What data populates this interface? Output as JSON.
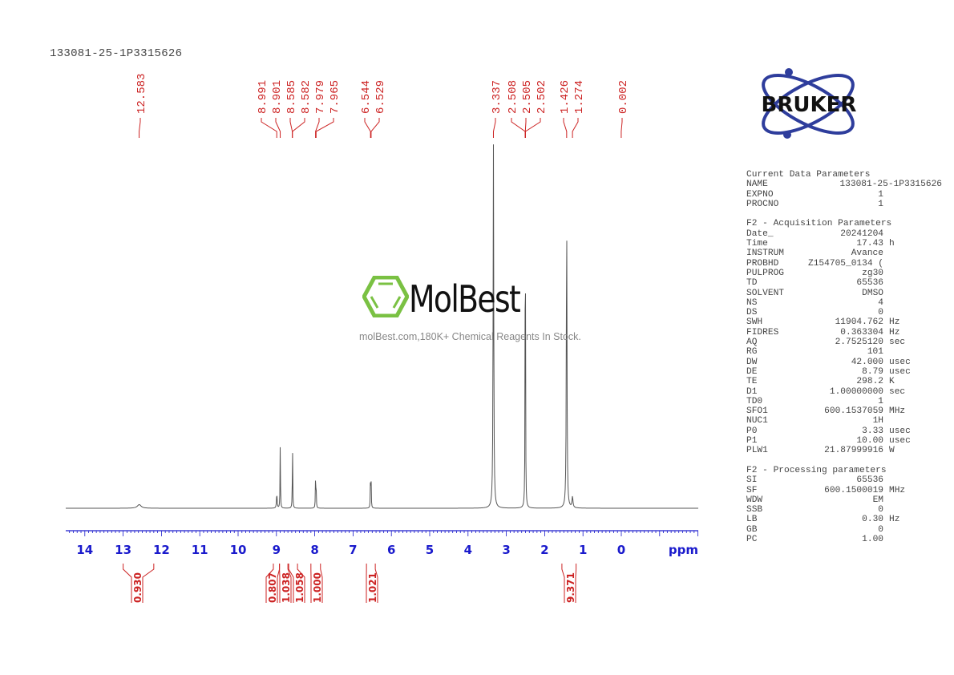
{
  "header": {
    "sample_id": "133081-25-1P3315626"
  },
  "logo": {
    "text": "BRUKER",
    "color": "#2e3d9c"
  },
  "watermark": {
    "brand": "MolBest",
    "tagline": "molBest.com,180K+ Chemical Reagents In Stock.",
    "hex_color": "#7ac143"
  },
  "params": {
    "current": {
      "title": "Current Data Parameters",
      "rows": [
        {
          "k": "NAME",
          "v": "133081-25-1P3315626",
          "u": ""
        },
        {
          "k": "EXPNO",
          "v": "1",
          "u": ""
        },
        {
          "k": "PROCNO",
          "v": "1",
          "u": ""
        }
      ]
    },
    "acquisition": {
      "title": "F2 - Acquisition Parameters",
      "rows": [
        {
          "k": "Date_",
          "v": "20241204",
          "u": ""
        },
        {
          "k": "Time",
          "v": "17.43",
          "u": "h"
        },
        {
          "k": "INSTRUM",
          "v": "Avance",
          "u": ""
        },
        {
          "k": "PROBHD",
          "v": "Z154705_0134 (",
          "u": ""
        },
        {
          "k": "PULPROG",
          "v": "zg30",
          "u": ""
        },
        {
          "k": "TD",
          "v": "65536",
          "u": ""
        },
        {
          "k": "SOLVENT",
          "v": "DMSO",
          "u": ""
        },
        {
          "k": "NS",
          "v": "4",
          "u": ""
        },
        {
          "k": "DS",
          "v": "0",
          "u": ""
        },
        {
          "k": "SWH",
          "v": "11904.762",
          "u": "Hz"
        },
        {
          "k": "FIDRES",
          "v": "0.363304",
          "u": "Hz"
        },
        {
          "k": "AQ",
          "v": "2.7525120",
          "u": "sec"
        },
        {
          "k": "RG",
          "v": "101",
          "u": ""
        },
        {
          "k": "DW",
          "v": "42.000",
          "u": "usec"
        },
        {
          "k": "DE",
          "v": "8.79",
          "u": "usec"
        },
        {
          "k": "TE",
          "v": "298.2",
          "u": "K"
        },
        {
          "k": "D1",
          "v": "1.00000000",
          "u": "sec"
        },
        {
          "k": "TD0",
          "v": "1",
          "u": ""
        },
        {
          "k": "SFO1",
          "v": "600.1537059",
          "u": "MHz"
        },
        {
          "k": "NUC1",
          "v": "1H",
          "u": ""
        },
        {
          "k": "P0",
          "v": "3.33",
          "u": "usec"
        },
        {
          "k": "P1",
          "v": "10.00",
          "u": "usec"
        },
        {
          "k": "PLW1",
          "v": "21.87999916",
          "u": "W"
        }
      ]
    },
    "processing": {
      "title": "F2 - Processing parameters",
      "rows": [
        {
          "k": "SI",
          "v": "65536",
          "u": ""
        },
        {
          "k": "SF",
          "v": "600.1500019",
          "u": "MHz"
        },
        {
          "k": "WDW",
          "v": "EM",
          "u": ""
        },
        {
          "k": "SSB",
          "v": "0",
          "u": ""
        },
        {
          "k": "LB",
          "v": "0.30",
          "u": "Hz"
        },
        {
          "k": "GB",
          "v": "0",
          "u": ""
        },
        {
          "k": "PC",
          "v": "1.00",
          "u": ""
        }
      ]
    }
  },
  "chart_data": {
    "type": "line",
    "title": "133081-25-1P3315626",
    "xlabel": "ppm",
    "ylabel": "",
    "xlim": [
      14.6,
      -2.0
    ],
    "x_ticks": [
      14,
      13,
      12,
      11,
      10,
      9,
      8,
      7,
      6,
      5,
      4,
      3,
      2,
      1,
      0
    ],
    "grid": false,
    "colors": {
      "spectrum": "#555555",
      "axis": "#1a1acc",
      "peak_labels": "#cc2222"
    },
    "peak_labels": [
      "12.583",
      "8.991",
      "8.901",
      "8.585",
      "8.582",
      "7.979",
      "7.965",
      "6.544",
      "6.529",
      "3.337",
      "2.508",
      "2.505",
      "2.502",
      "1.426",
      "1.274",
      "0.002"
    ],
    "peaks": [
      {
        "ppm": 12.58,
        "height": 0.01,
        "width": 0.12
      },
      {
        "ppm": 8.99,
        "height": 0.04,
        "width": 0.02
      },
      {
        "ppm": 8.9,
        "height": 0.18,
        "width": 0.012
      },
      {
        "ppm": 8.58,
        "height": 0.18,
        "width": 0.012
      },
      {
        "ppm": 7.98,
        "height": 0.07,
        "width": 0.012
      },
      {
        "ppm": 7.965,
        "height": 0.07,
        "width": 0.012
      },
      {
        "ppm": 6.545,
        "height": 0.08,
        "width": 0.012
      },
      {
        "ppm": 6.53,
        "height": 0.08,
        "width": 0.012
      },
      {
        "ppm": 3.337,
        "height": 1.0,
        "width": 0.02
      },
      {
        "ppm": 2.505,
        "height": 1.0,
        "width": 0.012
      },
      {
        "ppm": 1.426,
        "height": 0.82,
        "width": 0.02
      },
      {
        "ppm": 1.274,
        "height": 0.03,
        "width": 0.03
      }
    ],
    "integrals": [
      {
        "from": 13.0,
        "to": 12.2,
        "value": "0.930"
      },
      {
        "from": 9.08,
        "to": 8.92,
        "value": "0.807"
      },
      {
        "from": 8.92,
        "to": 8.7,
        "value": "1.038"
      },
      {
        "from": 8.68,
        "to": 8.45,
        "value": "1.058"
      },
      {
        "from": 8.1,
        "to": 7.85,
        "value": "1.000"
      },
      {
        "from": 6.65,
        "to": 6.42,
        "value": "1.021"
      },
      {
        "from": 1.55,
        "to": 1.18,
        "value": "9.371"
      }
    ]
  }
}
